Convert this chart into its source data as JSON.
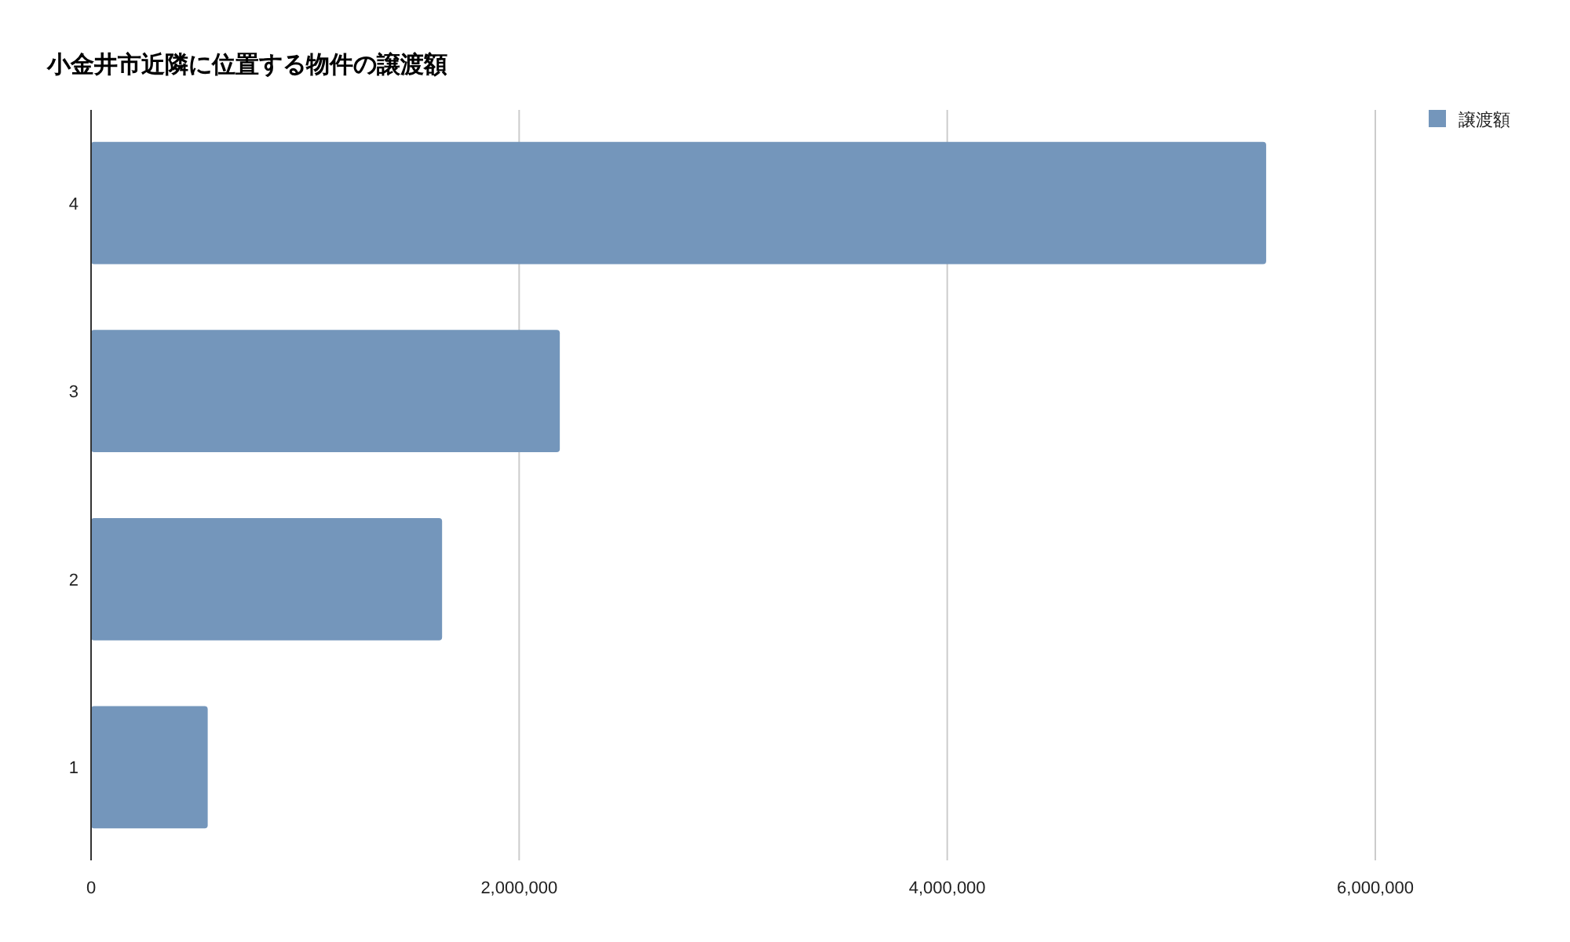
{
  "chart_data": {
    "type": "bar",
    "orientation": "horizontal",
    "title": "小金井市近隣に位置する物件の譲渡額",
    "categories": [
      "4",
      "3",
      "2",
      "1"
    ],
    "series": [
      {
        "name": "譲渡額",
        "color": "#7496bb",
        "values": [
          5490000,
          2190000,
          1640000,
          545000
        ]
      }
    ],
    "xlim": [
      0,
      6000000
    ],
    "xticks": [
      0,
      {
        "value": 2000000,
        "label": "2,000,000"
      },
      {
        "value": 4000000,
        "label": "4,000,000"
      },
      {
        "value": 6000000,
        "label": "6,000,000"
      }
    ],
    "grid": "x",
    "legend": "top right"
  }
}
